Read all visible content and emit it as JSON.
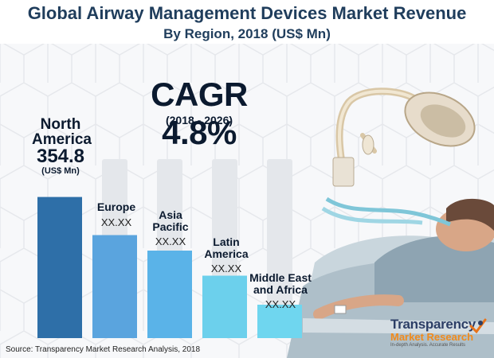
{
  "title": "Global Airway Management Devices Market Revenue",
  "subtitle": "By Region, 2018 (US$ Mn)",
  "cagr": {
    "label": "CAGR 4.8%",
    "period": "(2018 - 2026)"
  },
  "chart_data": {
    "type": "bar",
    "title": "Global Airway Management Devices Market Revenue",
    "subtitle": "By Region, 2018 (US$ Mn)",
    "xlabel": "",
    "ylabel": "",
    "unit": "US$ Mn",
    "categories": [
      "North America",
      "Europe",
      "Asia Pacific",
      "Latin America",
      "Middle East and Africa"
    ],
    "value_labels": [
      "354.8",
      "XX.XX",
      "XX.XX",
      "XX.XX",
      "XX.XX"
    ],
    "values": [
      354.8,
      259,
      220,
      157,
      84
    ],
    "value_note": "Only North America is labeled; other bars show 'XX.XX' and heights are estimated relative to it",
    "colors": [
      "#2e6fa8",
      "#5aa4de",
      "#5ab3e8",
      "#6cd0ec",
      "#6fd6ef"
    ],
    "ylim": [
      0,
      500
    ],
    "grid": false,
    "legend": "none"
  },
  "labels": {
    "na_name_1": "North",
    "na_name_2": "America",
    "na_value": "354.8",
    "na_unit": "(US$ Mn)",
    "eu_name": "Europe",
    "eu_value": "XX.XX",
    "ap_name_1": "Asia",
    "ap_name_2": "Pacific",
    "ap_value": "XX.XX",
    "la_name_1": "Latin",
    "la_name_2": "America",
    "la_value": "XX.XX",
    "mea_name_1": "Middle East",
    "mea_name_2": "and Africa",
    "mea_value": "XX.XX"
  },
  "source": "Source: Transparency Market Research Analysis, 2018",
  "logo": {
    "line1": "Transparency",
    "line2": "Market Research",
    "tagline": "In-depth Analysis. Accurate Results"
  }
}
